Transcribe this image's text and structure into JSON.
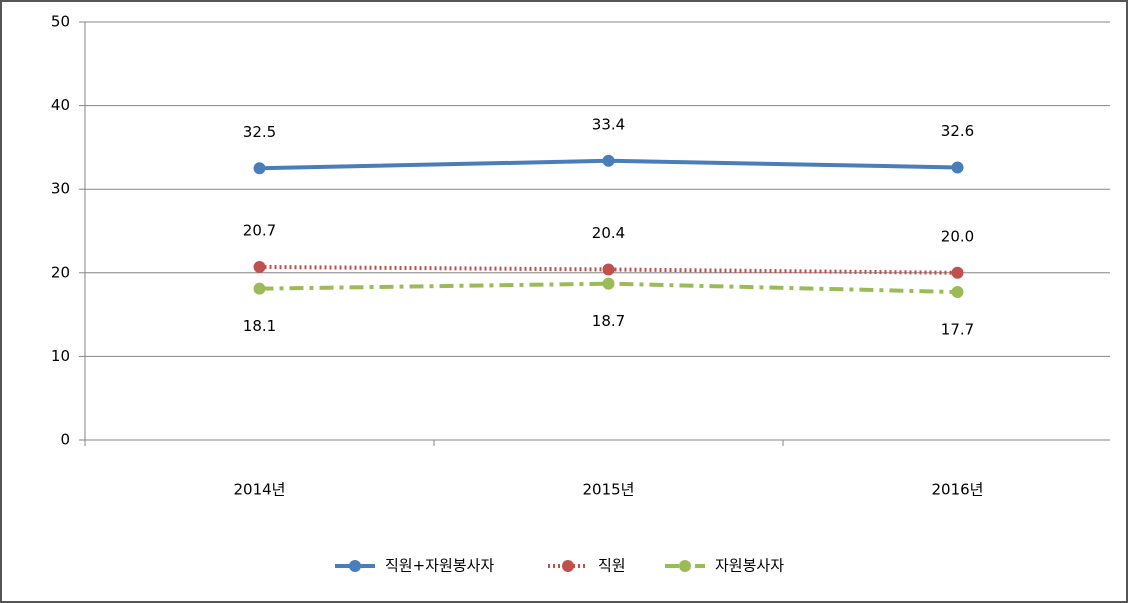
{
  "chart_data": {
    "type": "line",
    "categories": [
      "2014년",
      "2015년",
      "2016년"
    ],
    "series": [
      {
        "name": "직원+자원봉사자",
        "color": "#4a7ebb",
        "dash": "solid",
        "values": [
          32.5,
          33.4,
          32.6
        ]
      },
      {
        "name": "직원",
        "color": "#c0504d",
        "dash": "dotted",
        "values": [
          20.7,
          20.4,
          20.0
        ],
        "value_labels": [
          "20.7",
          "20.4",
          "20.0"
        ]
      },
      {
        "name": "자원봉사자",
        "color": "#9bbb59",
        "dash": "dashdot",
        "values": [
          18.1,
          18.7,
          17.7
        ]
      }
    ],
    "ylim": [
      0,
      50
    ],
    "yticks": [
      0,
      10,
      20,
      30,
      40,
      50
    ],
    "grid": true,
    "legend": "bottom"
  }
}
